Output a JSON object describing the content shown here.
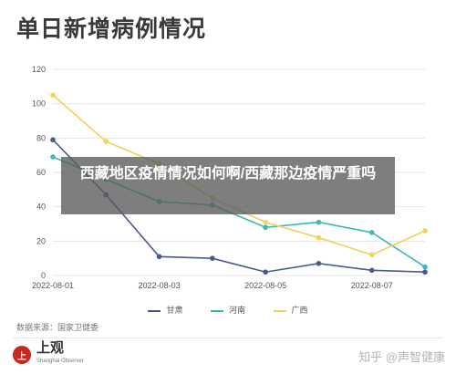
{
  "page_title": "单日新增病例情况",
  "chart_data": {
    "type": "line",
    "title": "",
    "xlabel": "",
    "ylabel": "",
    "ylim": [
      0,
      120
    ],
    "yticks": [
      0,
      20,
      40,
      60,
      80,
      100,
      120
    ],
    "x": [
      "2022-08-01",
      "2022-08-02",
      "2022-08-03",
      "2022-08-04",
      "2022-08-05",
      "2022-08-06",
      "2022-08-07",
      "2022-08-08"
    ],
    "x_tick_labels": [
      "2022-08-01",
      "",
      "2022-08-03",
      "",
      "2022-08-05",
      "",
      "2022-08-07",
      ""
    ],
    "grid": "horizontal",
    "legend_position": "bottom",
    "series": [
      {
        "name": "甘肃",
        "color": "#4a5a8c",
        "values": [
          79,
          47,
          11,
          10,
          2,
          7,
          3,
          2
        ]
      },
      {
        "name": "河南",
        "color": "#3fb7b2",
        "values": [
          69,
          56,
          43,
          41,
          28,
          31,
          25,
          5
        ]
      },
      {
        "name": "广西",
        "color": "#f2d25a",
        "values": [
          105,
          78,
          65,
          45,
          31,
          22,
          12,
          26
        ]
      }
    ]
  },
  "source_label": "数据来源：国家卫健委",
  "overlay_text": "西藏地区疫情情况如何啊/西藏那边疫情严重吗",
  "logo": {
    "name": "上观",
    "sub": "Shanghai Observer",
    "mark": "上"
  },
  "watermark": "知乎 @声智健康"
}
